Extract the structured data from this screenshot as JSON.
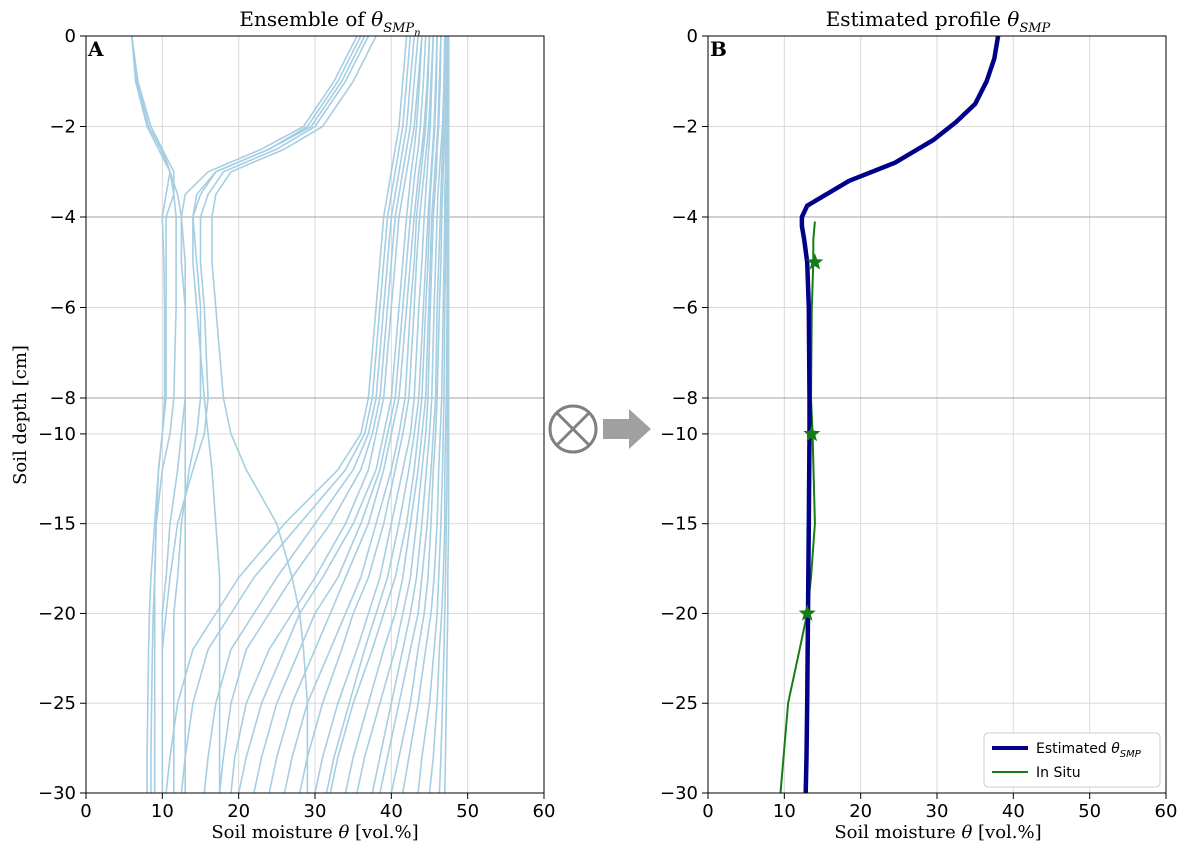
{
  "chart_data": [
    {
      "type": "line",
      "panel_label": "A",
      "title_prefix": "Ensemble of ",
      "title_symbol": "θ",
      "title_sub": "SMP",
      "title_subsub": "n",
      "xlabel_prefix": "Soil moisture ",
      "xlabel_symbol": "θ",
      "xlabel_suffix": " [vol.%]",
      "ylabel": "Soil depth [cm]",
      "xlim": [
        0,
        60
      ],
      "xticks": [
        "0",
        "10",
        "20",
        "30",
        "40",
        "50",
        "60"
      ],
      "yticks": [
        "0",
        "−2",
        "−4",
        "−6",
        "−8",
        "−10",
        "−15",
        "−20",
        "−25",
        "−30"
      ],
      "ytick_values": [
        0,
        -2,
        -4,
        -6,
        -8,
        -10,
        -15,
        -20,
        -25,
        -30
      ],
      "y_scale_note": "piecewise: 0 to -8 and -8 to -30 segments",
      "grid": true,
      "line_color": "#a6cee3",
      "depths": [
        0,
        -1,
        -2,
        -2.5,
        -3,
        -3.5,
        -4,
        -5,
        -6,
        -8,
        -10,
        -12,
        -15,
        -18,
        -20,
        -22,
        -25,
        -28,
        -30
      ],
      "series": [
        {
          "values": [
            6,
            6.5,
            8,
            9.5,
            11,
            12,
            12.5,
            13,
            13,
            13,
            13,
            13,
            13,
            13,
            13,
            13,
            13,
            13,
            13
          ]
        },
        {
          "values": [
            6,
            6.8,
            8.5,
            10,
            11.5,
            11.5,
            10.5,
            10.5,
            10.5,
            10.5,
            10,
            9.5,
            9,
            8.5,
            8.3,
            8.2,
            8.1,
            8,
            8
          ]
        },
        {
          "values": [
            6,
            6.6,
            8.2,
            9.8,
            11,
            10.5,
            10,
            10.2,
            10.3,
            10.3,
            10,
            9.5,
            9.2,
            9,
            9,
            9,
            9,
            9,
            9
          ]
        },
        {
          "values": [
            6,
            6.7,
            8.5,
            10,
            11,
            11.5,
            11.8,
            11.8,
            11.8,
            11.5,
            11,
            10,
            9.2,
            9,
            8.8,
            8.7,
            8.6,
            8.5,
            8.5
          ]
        },
        {
          "values": [
            36,
            33,
            29,
            24,
            17,
            15,
            14,
            14,
            14.5,
            15.5,
            16,
            16.5,
            17,
            17.5,
            17.5,
            17.5,
            17.5,
            17.5,
            17.5
          ]
        },
        {
          "values": [
            37,
            34,
            30,
            25,
            18,
            16,
            15,
            15,
            15.5,
            16,
            15.5,
            14,
            12,
            11,
            10.5,
            10,
            10,
            10,
            10
          ]
        },
        {
          "values": [
            35.5,
            32.5,
            28.5,
            23,
            16,
            13,
            12.5,
            12.5,
            13,
            13,
            12.5,
            12,
            11,
            10.5,
            10,
            10,
            10,
            10,
            10
          ]
        },
        {
          "values": [
            36.5,
            33.5,
            29.5,
            24,
            17,
            14.5,
            14,
            14.5,
            15,
            15,
            14.5,
            13.5,
            12.5,
            12,
            11.5,
            11.5,
            11.5,
            11.5,
            11.5
          ]
        },
        {
          "values": [
            38,
            35,
            31,
            26,
            19,
            17,
            16.5,
            16.5,
            17,
            18,
            19,
            21,
            25,
            27,
            28,
            28.5,
            29,
            29,
            29
          ]
        },
        {
          "values": [
            42,
            41.5,
            41,
            40.5,
            40,
            39.5,
            39,
            38.5,
            38,
            37,
            36,
            33,
            26,
            20,
            17,
            14,
            12,
            11,
            10.5
          ]
        },
        {
          "values": [
            42.5,
            42,
            41.5,
            41,
            40.5,
            40,
            39.5,
            39,
            38.5,
            37.5,
            36.5,
            34,
            28,
            22,
            19,
            16,
            14,
            13,
            12.5
          ]
        },
        {
          "values": [
            43,
            42.5,
            42,
            41.5,
            41,
            40.5,
            40,
            39.5,
            39,
            38,
            37,
            35,
            30,
            25,
            22,
            19,
            17,
            16,
            15.5
          ]
        },
        {
          "values": [
            43.5,
            43,
            42.5,
            42,
            41.5,
            41,
            40.5,
            40,
            39.5,
            38.5,
            37.5,
            36,
            32,
            27,
            24,
            21,
            19,
            18,
            17.5
          ]
        },
        {
          "values": [
            44,
            43.5,
            43,
            42.5,
            42,
            41.5,
            41,
            40.5,
            40,
            39,
            38,
            37,
            34,
            30,
            27,
            24,
            21,
            19.5,
            19
          ]
        },
        {
          "values": [
            44,
            43.7,
            43.3,
            43,
            42.6,
            42.3,
            42,
            41.5,
            41,
            40,
            39,
            38,
            35,
            31,
            28,
            26,
            23,
            21,
            20
          ]
        },
        {
          "values": [
            44.5,
            44.2,
            43.8,
            43.5,
            43.1,
            42.8,
            42.5,
            42,
            41.5,
            40.5,
            39.5,
            38.5,
            36,
            33,
            30,
            28,
            25,
            23,
            22
          ]
        },
        {
          "values": [
            45,
            44.7,
            44.3,
            44,
            43.6,
            43.3,
            43,
            42.5,
            42,
            41,
            40,
            39,
            37,
            34,
            32,
            30,
            27,
            25,
            24
          ]
        },
        {
          "values": [
            45,
            44.8,
            44.5,
            44.2,
            43.9,
            43.6,
            43.3,
            43,
            42.5,
            41.8,
            41,
            40,
            38,
            36,
            34,
            32,
            29,
            27,
            26
          ]
        },
        {
          "values": [
            45.5,
            45.2,
            44.9,
            44.6,
            44.3,
            44,
            43.7,
            43.3,
            43,
            42.3,
            41.5,
            40.5,
            39,
            37,
            35,
            33.5,
            31,
            29,
            28
          ]
        },
        {
          "values": [
            45.5,
            45.3,
            45.1,
            44.9,
            44.7,
            44.5,
            44.3,
            44,
            43.6,
            43,
            42.5,
            41.5,
            40,
            38.5,
            37,
            35.5,
            33,
            31,
            30
          ]
        },
        {
          "values": [
            46,
            45.8,
            45.6,
            45.4,
            45.2,
            45,
            44.8,
            44.5,
            44.2,
            43.6,
            43,
            42.3,
            41,
            39.5,
            38,
            36.5,
            34.5,
            32.5,
            31.5
          ]
        },
        {
          "values": [
            46,
            45.9,
            45.7,
            45.5,
            45.3,
            45.1,
            45,
            44.8,
            44.5,
            44,
            43.5,
            43,
            42,
            40.5,
            39,
            37.5,
            35,
            33,
            32
          ]
        },
        {
          "values": [
            46.5,
            46.3,
            46.1,
            45.9,
            45.7,
            45.5,
            45.3,
            45.1,
            44.9,
            44.5,
            44,
            43.5,
            42.5,
            41.5,
            40.5,
            39,
            37,
            35,
            34
          ]
        },
        {
          "values": [
            46.5,
            46.4,
            46.2,
            46,
            45.9,
            45.7,
            45.5,
            45.3,
            45.1,
            44.8,
            44.5,
            44,
            43.3,
            42.5,
            41.5,
            40.5,
            38.5,
            36.5,
            35.5
          ]
        },
        {
          "values": [
            47,
            46.9,
            46.7,
            46.5,
            46.3,
            46.1,
            46,
            45.8,
            45.6,
            45.3,
            45,
            44.6,
            44,
            43.3,
            42.5,
            41.5,
            40,
            38.5,
            37.5
          ]
        },
        {
          "values": [
            47,
            46.9,
            46.8,
            46.7,
            46.6,
            46.5,
            46.4,
            46.2,
            46,
            45.8,
            45.5,
            45.2,
            44.7,
            44,
            43.5,
            42.5,
            41,
            39.5,
            38.5
          ]
        },
        {
          "values": [
            47.2,
            47.1,
            47,
            46.9,
            46.8,
            46.7,
            46.6,
            46.5,
            46.3,
            46,
            45.8,
            45.5,
            45.2,
            44.8,
            44.3,
            43.5,
            42.5,
            41,
            40
          ]
        },
        {
          "values": [
            47.3,
            47.2,
            47.2,
            47.1,
            47.1,
            47,
            47,
            46.9,
            46.8,
            46.6,
            46.4,
            46.2,
            46,
            45.6,
            45.2,
            44.5,
            43.5,
            42.3,
            41.5
          ]
        },
        {
          "values": [
            47.4,
            47.4,
            47.3,
            47.3,
            47.3,
            47.2,
            47.2,
            47.1,
            47,
            46.9,
            46.8,
            46.7,
            46.5,
            46.2,
            46,
            45.6,
            45,
            44,
            43.5
          ]
        },
        {
          "values": [
            47.5,
            47.5,
            47.4,
            47.4,
            47.4,
            47.4,
            47.3,
            47.3,
            47.3,
            47.2,
            47.1,
            47,
            47,
            46.8,
            46.6,
            46.3,
            46,
            45.5,
            45
          ]
        },
        {
          "values": [
            47.5,
            47.5,
            47.5,
            47.5,
            47.5,
            47.5,
            47.5,
            47.4,
            47.4,
            47.4,
            47.3,
            47.3,
            47.2,
            47.1,
            47,
            46.9,
            46.7,
            46.5,
            46.3
          ]
        },
        {
          "values": [
            47.5,
            47.5,
            47.5,
            47.5,
            47.5,
            47.5,
            47.5,
            47.5,
            47.5,
            47.5,
            47.5,
            47.5,
            47.5,
            47.4,
            47.4,
            47.3,
            47.2,
            47.1,
            47
          ]
        }
      ]
    },
    {
      "type": "line",
      "panel_label": "B",
      "title_prefix": "Estimated profile ",
      "title_symbol": "θ",
      "title_sub": "SMP",
      "xlabel_prefix": "Soil moisture ",
      "xlabel_symbol": "θ",
      "xlabel_suffix": " [vol.%]",
      "xlim": [
        0,
        60
      ],
      "xticks": [
        "0",
        "10",
        "20",
        "30",
        "40",
        "50",
        "60"
      ],
      "yticks": [
        "0",
        "−2",
        "−4",
        "−6",
        "−8",
        "−10",
        "−15",
        "−20",
        "−25",
        "−30"
      ],
      "ytick_values": [
        0,
        -2,
        -4,
        -6,
        -8,
        -10,
        -15,
        -20,
        -25,
        -30
      ],
      "grid": true,
      "legend_position": "bottom-right",
      "series": [
        {
          "name_prefix": "Estimated ",
          "name_symbol": "θ",
          "name_sub": "SMP",
          "color": "#00008b",
          "x": [
            38,
            37.5,
            36.5,
            35,
            32.5,
            29.5,
            24.5,
            18.5,
            13,
            12.3,
            12.3,
            12.6,
            13,
            13.2,
            13.3,
            13.3,
            13.2,
            13.1,
            13,
            12.9,
            12.8
          ],
          "y": [
            0,
            -0.5,
            -1,
            -1.5,
            -1.9,
            -2.3,
            -2.8,
            -3.2,
            -3.75,
            -4,
            -4.2,
            -4.5,
            -5,
            -6,
            -8,
            -10,
            -15,
            -20,
            -25,
            -28,
            -30
          ]
        },
        {
          "name": "In Situ",
          "color": "#167d16",
          "x": [
            14,
            13.8,
            13.8,
            13.6,
            13.5,
            13.7,
            14,
            13.5,
            13,
            12,
            10.5,
            9.5
          ],
          "y": [
            -4.1,
            -4.5,
            -5,
            -6,
            -8,
            -10,
            -15,
            -18,
            -20,
            -22,
            -25,
            -30
          ]
        }
      ],
      "markers": {
        "color": "#167d16",
        "x": [
          14,
          13.6,
          13
        ],
        "y": [
          -5,
          -10,
          -20
        ]
      }
    }
  ]
}
